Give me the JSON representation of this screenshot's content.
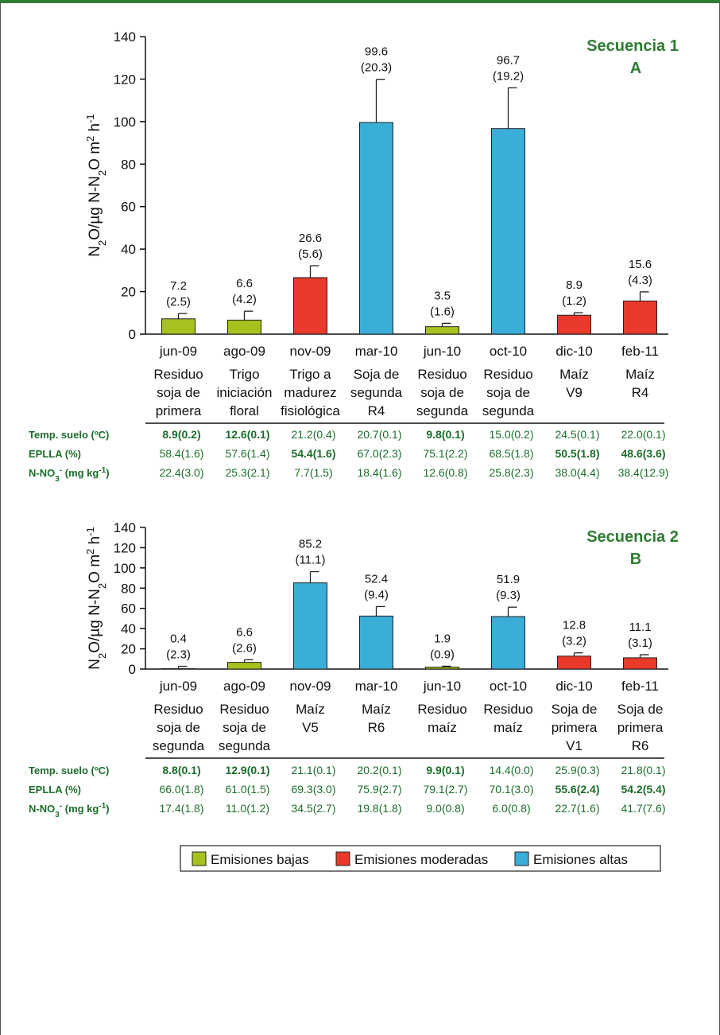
{
  "legend": [
    {
      "label": "Emisiones bajas",
      "color": "#a6c21f"
    },
    {
      "label": "Emisiones moderadas",
      "color": "#e8392b"
    },
    {
      "label": "Emisiones altas",
      "color": "#3aaed8"
    }
  ],
  "colors": {
    "bajas": "#a6c21f",
    "moderadas": "#e8392b",
    "altas": "#3aaed8",
    "green_text": "#1b6e2a"
  },
  "chart_data": [
    {
      "type": "bar",
      "title": "Secuencia 1",
      "panel": "A",
      "ylabel": "N2O/µg N-N2O m2 h-1",
      "ylim": [
        0,
        140
      ],
      "yticks": [
        "0",
        "20",
        "40",
        "60",
        "80",
        "100",
        "120",
        "140"
      ],
      "legend_position": "bottom",
      "categories": [
        "jun-09",
        "ago-09",
        "nov-09",
        "mar-10",
        "jun-10",
        "oct-10",
        "dic-10",
        "feb-11"
      ],
      "subcategories": [
        [
          "Residuo",
          "soja de",
          "primera"
        ],
        [
          "Trigo",
          "iniciación",
          "floral"
        ],
        [
          "Trigo a",
          "madurez",
          "fisiológica"
        ],
        [
          "Soja de",
          "segunda",
          "R4"
        ],
        [
          "Residuo",
          "soja de",
          "segunda"
        ],
        [
          "Residuo",
          "soja de",
          "segunda"
        ],
        [
          "Maíz",
          "V9"
        ],
        [
          "Maíz",
          "R4"
        ]
      ],
      "values": [
        7.2,
        6.6,
        26.6,
        99.6,
        3.5,
        96.7,
        8.9,
        15.6
      ],
      "errors": [
        2.5,
        4.2,
        5.6,
        20.3,
        1.6,
        19.2,
        1.2,
        4.3
      ],
      "value_labels": [
        "7.2",
        "6.6",
        "26.6",
        "99.6",
        "3.5",
        "96.7",
        "8.9",
        "15.6"
      ],
      "error_labels": [
        "(2.5)",
        "(4.2)",
        "(5.6)",
        "(20.3)",
        "(1.6)",
        "(19.2)",
        "(1.2)",
        "(4.3)"
      ],
      "classes": [
        "bajas",
        "bajas",
        "moderadas",
        "altas",
        "bajas",
        "altas",
        "moderadas",
        "moderadas"
      ],
      "table": [
        {
          "label": "Temp. suelo (ºC)",
          "values": [
            "8.9(0.2)",
            "12.6(0.1)",
            "21.2(0.4)",
            "20.7(0.1)",
            "9.8(0.1)",
            "15.0(0.2)",
            "24.5(0.1)",
            "22.0(0.1)"
          ],
          "bold": [
            true,
            true,
            false,
            false,
            true,
            false,
            false,
            false
          ]
        },
        {
          "label": "EPLLA (%)",
          "values": [
            "58.4(1.6)",
            "57.6(1.4)",
            "54.4(1.6)",
            "67.0(2.3)",
            "75.1(2.2)",
            "68.5(1.8)",
            "50.5(1.8)",
            "48.6(3.6)"
          ],
          "bold": [
            false,
            false,
            true,
            false,
            false,
            false,
            true,
            true
          ]
        },
        {
          "label": "N-NO3- (mg kg-1)",
          "values": [
            "22.4(3.0)",
            "25.3(2.1)",
            "7.7(1.5)",
            "18.4(1.6)",
            "12.6(0.8)",
            "25.8(2.3)",
            "38.0(4.4)",
            "38.4(12.9)"
          ],
          "bold": [
            false,
            false,
            false,
            false,
            false,
            false,
            false,
            false
          ]
        }
      ]
    },
    {
      "type": "bar",
      "title": "Secuencia 2",
      "panel": "B",
      "ylabel": "N2O/µg N-N2O m2 h-1",
      "ylim": [
        0,
        140
      ],
      "yticks": [
        "0",
        "20",
        "40",
        "60",
        "80",
        "100",
        "120",
        "140"
      ],
      "legend_position": "bottom",
      "categories": [
        "jun-09",
        "ago-09",
        "nov-09",
        "mar-10",
        "jun-10",
        "oct-10",
        "dic-10",
        "feb-11"
      ],
      "subcategories": [
        [
          "Residuo",
          "soja de",
          "segunda"
        ],
        [
          "Residuo",
          "soja de",
          "segunda"
        ],
        [
          "Maíz",
          "V5"
        ],
        [
          "Maíz",
          "R6"
        ],
        [
          "Residuo",
          "maíz"
        ],
        [
          "Residuo",
          "maíz"
        ],
        [
          "Soja de",
          "primera",
          "V1"
        ],
        [
          "Soja de",
          "primera",
          "R6"
        ]
      ],
      "values": [
        0.4,
        6.6,
        85.2,
        52.4,
        1.9,
        51.9,
        12.8,
        11.1
      ],
      "errors": [
        2.3,
        2.6,
        11.1,
        9.4,
        0.9,
        9.3,
        3.2,
        3.1
      ],
      "value_labels": [
        "0.4",
        "6.6",
        "85.2",
        "52.4",
        "1.9",
        "51.9",
        "12.8",
        "11.1"
      ],
      "error_labels": [
        "(2.3)",
        "(2.6)",
        "(11.1)",
        "(9.4)",
        "(0.9)",
        "(9.3)",
        "(3.2)",
        "(3.1)"
      ],
      "classes": [
        "bajas",
        "bajas",
        "altas",
        "altas",
        "bajas",
        "altas",
        "moderadas",
        "moderadas"
      ],
      "table": [
        {
          "label": "Temp. suelo (ºC)",
          "values": [
            "8.8(0.1)",
            "12.9(0.1)",
            "21.1(0.1)",
            "20.2(0.1)",
            "9.9(0.1)",
            "14.4(0.0)",
            "25.9(0.3)",
            "21.8(0.1)"
          ],
          "bold": [
            true,
            true,
            false,
            false,
            true,
            false,
            false,
            false
          ]
        },
        {
          "label": "EPLLA (%)",
          "values": [
            "66.0(1.8)",
            "61.0(1.5)",
            "69.3(3.0)",
            "75.9(2.7)",
            "79.1(2.7)",
            "70.1(3.0)",
            "55.6(2.4)",
            "54.2(5.4)"
          ],
          "bold": [
            false,
            false,
            false,
            false,
            false,
            false,
            true,
            true
          ]
        },
        {
          "label": "N-NO3- (mg kg-1)",
          "values": [
            "17.4(1.8)",
            "11.0(1.2)",
            "34.5(2.7)",
            "19.8(1.8)",
            "9.0(0.8)",
            "6.0(0.8)",
            "22.7(1.6)",
            "41.7(7.6)"
          ],
          "bold": [
            false,
            false,
            false,
            false,
            false,
            false,
            false,
            false
          ]
        }
      ]
    }
  ]
}
